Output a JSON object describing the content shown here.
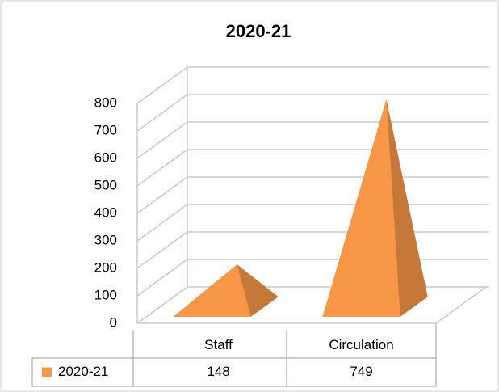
{
  "chart_data": {
    "type": "pyramid3d",
    "title": "2020-21",
    "categories": [
      "Staff",
      "Circulation"
    ],
    "series": [
      {
        "name": "2020-21",
        "color": "#f79646",
        "values": [
          148,
          749
        ]
      }
    ],
    "ylim": [
      0,
      800
    ],
    "yticks": [
      0,
      100,
      200,
      300,
      400,
      500,
      600,
      700,
      800
    ],
    "grid": true,
    "data_table": true
  }
}
